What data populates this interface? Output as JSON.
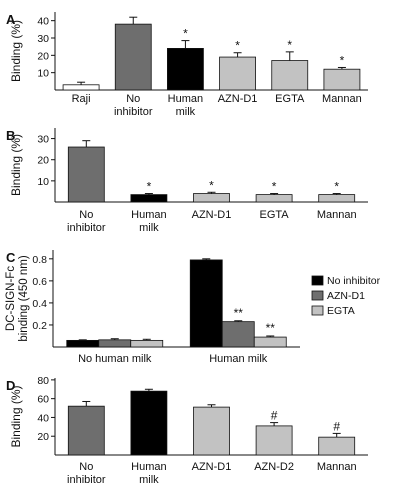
{
  "colors": {
    "black": "#000000",
    "dark_gray": "#6e6e6e",
    "light_gray": "#c2c2c2",
    "white": "#ffffff",
    "text": "#111111"
  },
  "chart_data": [
    {
      "panel": "A",
      "type": "bar",
      "ylabel": "Binding (%)",
      "ylim": [
        0,
        45
      ],
      "yticks": [
        10,
        20,
        30,
        40
      ],
      "categories": [
        [
          "Raji"
        ],
        [
          "No",
          "inhibitor"
        ],
        [
          "Human",
          "milk"
        ],
        [
          "AZN-D1"
        ],
        [
          "EGTA"
        ],
        [
          "Mannan"
        ]
      ],
      "values": [
        3,
        38,
        24,
        19,
        17,
        12
      ],
      "errors": [
        1.5,
        4,
        4.5,
        2.5,
        5,
        1
      ],
      "colors": [
        "white",
        "dark_gray",
        "black",
        "light_gray",
        "light_gray",
        "light_gray"
      ],
      "markers": [
        "",
        "",
        "*",
        "*",
        "*",
        "*"
      ]
    },
    {
      "panel": "B",
      "type": "bar",
      "ylabel": "Binding (%)",
      "ylim": [
        0,
        35
      ],
      "yticks": [
        10,
        20,
        30
      ],
      "categories": [
        [
          "No",
          "inhibitor"
        ],
        [
          "Human",
          "milk"
        ],
        [
          "AZN-D1"
        ],
        [
          "EGTA"
        ],
        [
          "Mannan"
        ]
      ],
      "values": [
        26,
        3.5,
        4,
        3.5,
        3.5
      ],
      "errors": [
        3,
        0.5,
        0.6,
        0.5,
        0.5
      ],
      "colors": [
        "dark_gray",
        "black",
        "light_gray",
        "light_gray",
        "light_gray"
      ],
      "markers": [
        "",
        "*",
        "*",
        "*",
        "*"
      ]
    },
    {
      "panel": "C",
      "type": "bar",
      "ylabel_lines": [
        "DC-SIGN-Fc",
        "binding (450 nm)"
      ],
      "ylim": [
        0,
        0.88
      ],
      "yticks": [
        0.2,
        0.4,
        0.6,
        0.8
      ],
      "ytick_labels": [
        "0.2",
        "0.4",
        "0.6",
        "0.8"
      ],
      "categories": [
        "No human milk",
        "Human milk"
      ],
      "series": [
        {
          "name": "No inhibitor",
          "color": "black",
          "values": [
            0.06,
            0.79
          ],
          "errors": [
            0.005,
            0.01
          ],
          "markers": [
            "",
            ""
          ]
        },
        {
          "name": "AZN-D1",
          "color": "dark_gray",
          "values": [
            0.065,
            0.23
          ],
          "errors": [
            0.01,
            0.008
          ],
          "markers": [
            "",
            "**"
          ]
        },
        {
          "name": "EGTA",
          "color": "light_gray",
          "values": [
            0.06,
            0.09
          ],
          "errors": [
            0.01,
            0.01
          ],
          "markers": [
            "",
            "**"
          ]
        }
      ],
      "legend": "right"
    },
    {
      "panel": "D",
      "type": "bar",
      "ylabel": "Binding (%)",
      "ylim": [
        0,
        82
      ],
      "yticks": [
        20,
        40,
        60,
        80
      ],
      "categories": [
        [
          "No",
          "inhibitor"
        ],
        [
          "Human",
          "milk"
        ],
        [
          "AZN-D1"
        ],
        [
          "AZN-D2"
        ],
        [
          "Mannan"
        ]
      ],
      "values": [
        52,
        68,
        51,
        31,
        19
      ],
      "errors": [
        5,
        2,
        2.5,
        3.5,
        4
      ],
      "colors": [
        "dark_gray",
        "black",
        "light_gray",
        "light_gray",
        "light_gray"
      ],
      "markers": [
        "",
        "",
        "",
        "#",
        "#"
      ]
    }
  ]
}
